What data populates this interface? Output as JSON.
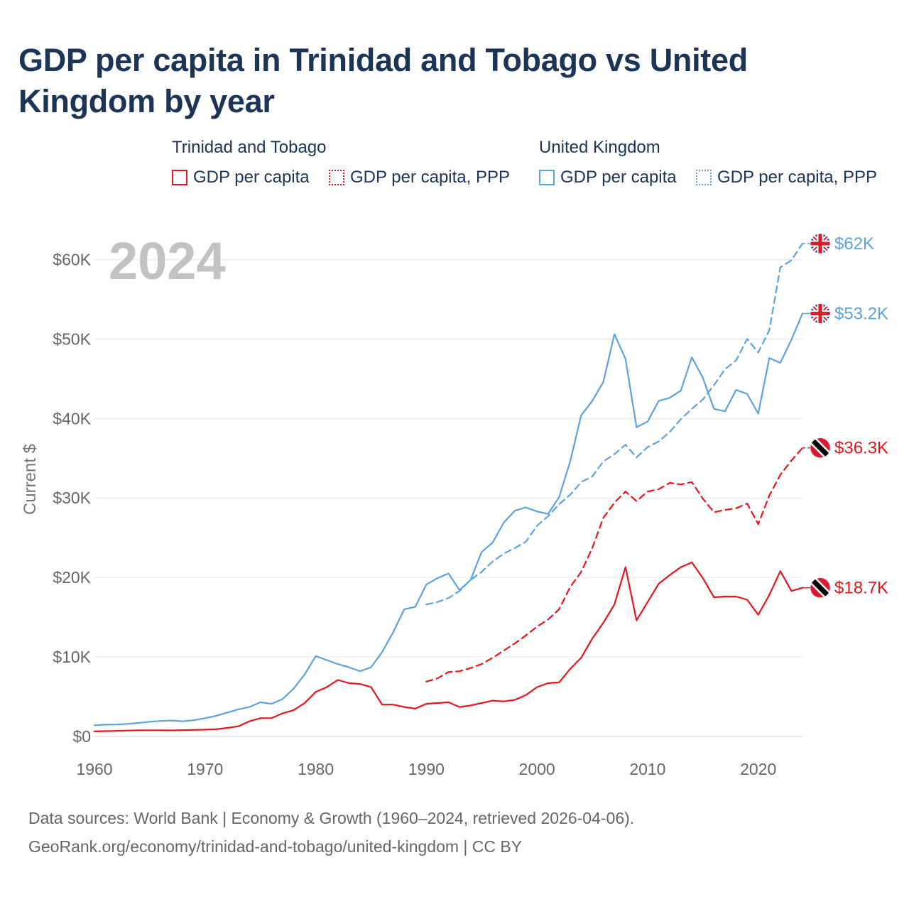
{
  "title": "GDP per capita in Trinidad and Tobago vs United Kingdom by year",
  "legend": {
    "groups": [
      {
        "name": "Trinidad and Tobago",
        "items": [
          "GDP per capita",
          "GDP per capita, PPP"
        ],
        "color": "#e4161b"
      },
      {
        "name": "United Kingdom",
        "items": [
          "GDP per capita",
          "GDP per capita, PPP"
        ],
        "color": "#5aa2e0"
      }
    ]
  },
  "chart_data": {
    "type": "line",
    "year_label": "2024",
    "ylabel": "Current $",
    "xlim": [
      1960,
      2024
    ],
    "ylim": [
      0,
      62000
    ],
    "x_ticks": [
      "1960",
      "1970",
      "1980",
      "1990",
      "2000",
      "2010",
      "2020"
    ],
    "y_ticks": [
      {
        "value": 0,
        "label": "$0"
      },
      {
        "value": 10000,
        "label": "$10K"
      },
      {
        "value": 20000,
        "label": "$20K"
      },
      {
        "value": 30000,
        "label": "$30K"
      },
      {
        "value": 40000,
        "label": "$40K"
      },
      {
        "value": 50000,
        "label": "$50K"
      },
      {
        "value": 60000,
        "label": "$60K"
      }
    ],
    "series": [
      {
        "name": "United Kingdom GDP per capita, PPP",
        "country": "United Kingdom",
        "style": "dashed",
        "color": "#5aa2e0",
        "flag": "uk",
        "end_label": "$62K",
        "start_year": 1990,
        "values": [
          16600,
          16900,
          17400,
          18300,
          19700,
          20700,
          22000,
          23000,
          23700,
          24500,
          26500,
          27700,
          29200,
          30400,
          32000,
          32700,
          34600,
          35500,
          36700,
          35100,
          36400,
          37100,
          38300,
          39900,
          41200,
          42400,
          44200,
          46200,
          47300,
          50000,
          48300,
          51100,
          59000,
          59900,
          62000
        ]
      },
      {
        "name": "United Kingdom GDP per capita",
        "country": "United Kingdom",
        "style": "solid",
        "color": "#5aa2e0",
        "flag": "uk",
        "end_label": "$53.2K",
        "start_year": 1960,
        "values": [
          1400,
          1480,
          1500,
          1580,
          1700,
          1850,
          1950,
          2000,
          1900,
          2050,
          2300,
          2600,
          3000,
          3400,
          3700,
          4300,
          4100,
          4700,
          6000,
          7800,
          10100,
          9600,
          9100,
          8700,
          8200,
          8700,
          10600,
          13100,
          16000,
          16300,
          19100,
          19900,
          20500,
          18400,
          19700,
          23200,
          24400,
          26900,
          28400,
          28800,
          28300,
          28000,
          30100,
          34600,
          40400,
          42200,
          44600,
          50600,
          47500,
          38900,
          39600,
          42200,
          42600,
          43500,
          47700,
          45100,
          41200,
          40900,
          43600,
          43100,
          40600,
          47600,
          47000,
          49900,
          53200
        ]
      },
      {
        "name": "Trinidad and Tobago GDP per capita, PPP",
        "country": "Trinidad and Tobago",
        "style": "dashed",
        "color": "#e4161b",
        "flag": "tt",
        "end_label": "$36.3K",
        "start_year": 1990,
        "values": [
          6900,
          7300,
          8100,
          8200,
          8600,
          9100,
          9900,
          10800,
          11700,
          12700,
          13800,
          14700,
          16000,
          18800,
          20700,
          23700,
          27500,
          29400,
          30800,
          29600,
          30800,
          31100,
          31900,
          31700,
          32000,
          29900,
          28200,
          28500,
          28700,
          29300,
          26700,
          30300,
          32900,
          34700,
          36300
        ]
      },
      {
        "name": "Trinidad and Tobago GDP per capita",
        "country": "Trinidad and Tobago",
        "style": "solid",
        "color": "#e4161b",
        "flag": "tt",
        "end_label": "$18.7K",
        "start_year": 1960,
        "values": [
          630,
          670,
          700,
          740,
          770,
          780,
          770,
          760,
          790,
          820,
          850,
          900,
          1070,
          1270,
          1900,
          2300,
          2300,
          2900,
          3300,
          4200,
          5600,
          6200,
          7100,
          6700,
          6600,
          6200,
          4000,
          4000,
          3700,
          3500,
          4100,
          4200,
          4300,
          3700,
          3900,
          4200,
          4500,
          4400,
          4600,
          5200,
          6200,
          6700,
          6800,
          8500,
          9900,
          12300,
          14300,
          16600,
          21300,
          14600,
          16900,
          19200,
          20300,
          21300,
          21900,
          19900,
          17500,
          17600,
          17600,
          17200,
          15300,
          17800,
          20800,
          18300,
          18700
        ]
      }
    ]
  },
  "footer": {
    "line1": "Data sources: World Bank | Economy & Growth (1960–2024, retrieved 2026-04-06).",
    "line2": "GeoRank.org/economy/trinidad-and-tobago/united-kingdom | CC BY"
  }
}
